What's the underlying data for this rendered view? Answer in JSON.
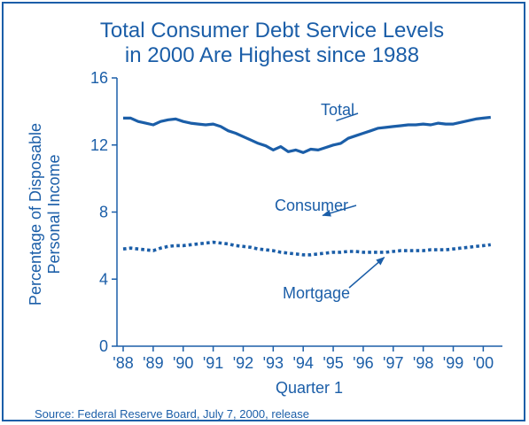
{
  "chart_data": {
    "type": "line",
    "title_lines": [
      "Total Consumer Debt Service Levels",
      "in 2000 Are Highest since 1988"
    ],
    "ylabel_lines": [
      "Percentage of Disposable",
      "Personal Income"
    ],
    "xlabel": "Quarter 1",
    "ylim": [
      0,
      16
    ],
    "yticks": [
      0,
      4,
      8,
      12,
      16
    ],
    "xlim": [
      1988,
      2000.55
    ],
    "x_categories": [
      "'88",
      "'89",
      "'90",
      "'91",
      "'92",
      "'93",
      "'94",
      "'95",
      "'96",
      "'97",
      "'98",
      "'99",
      "'00"
    ],
    "x_category_positions": [
      1988,
      1989,
      1990,
      1991,
      1992,
      1993,
      1994,
      1995,
      1996,
      1997,
      1998,
      1999,
      2000
    ],
    "grid": false,
    "series": [
      {
        "name": "Total",
        "style": "solid",
        "color": "#1b5ea8",
        "points": [
          [
            1988.0,
            13.6
          ],
          [
            1988.25,
            13.6
          ],
          [
            1988.5,
            13.4
          ],
          [
            1988.75,
            13.3
          ],
          [
            1989.0,
            13.2
          ],
          [
            1989.25,
            13.4
          ],
          [
            1989.5,
            13.5
          ],
          [
            1989.75,
            13.55
          ],
          [
            1990.0,
            13.4
          ],
          [
            1990.25,
            13.3
          ],
          [
            1990.5,
            13.25
          ],
          [
            1990.75,
            13.2
          ],
          [
            1991.0,
            13.25
          ],
          [
            1991.25,
            13.1
          ],
          [
            1991.5,
            12.85
          ],
          [
            1991.75,
            12.7
          ],
          [
            1992.0,
            12.5
          ],
          [
            1992.25,
            12.3
          ],
          [
            1992.5,
            12.1
          ],
          [
            1992.75,
            11.95
          ],
          [
            1993.0,
            11.7
          ],
          [
            1993.25,
            11.9
          ],
          [
            1993.5,
            11.6
          ],
          [
            1993.75,
            11.7
          ],
          [
            1994.0,
            11.55
          ],
          [
            1994.25,
            11.75
          ],
          [
            1994.5,
            11.7
          ],
          [
            1994.75,
            11.85
          ],
          [
            1995.0,
            12.0
          ],
          [
            1995.25,
            12.1
          ],
          [
            1995.5,
            12.4
          ],
          [
            1995.75,
            12.55
          ],
          [
            1996.0,
            12.7
          ],
          [
            1996.25,
            12.85
          ],
          [
            1996.5,
            13.0
          ],
          [
            1996.75,
            13.05
          ],
          [
            1997.0,
            13.1
          ],
          [
            1997.25,
            13.15
          ],
          [
            1997.5,
            13.2
          ],
          [
            1997.75,
            13.2
          ],
          [
            1998.0,
            13.25
          ],
          [
            1998.25,
            13.2
          ],
          [
            1998.5,
            13.3
          ],
          [
            1998.75,
            13.25
          ],
          [
            1999.0,
            13.25
          ],
          [
            1999.25,
            13.35
          ],
          [
            1999.5,
            13.45
          ],
          [
            1999.75,
            13.55
          ],
          [
            2000.0,
            13.6
          ],
          [
            2000.25,
            13.65
          ]
        ]
      },
      {
        "name": "Consumer",
        "style": "dotted",
        "color": "#1b5ea8",
        "points": [
          [
            1988.0,
            5.8
          ],
          [
            1988.25,
            5.85
          ],
          [
            1988.5,
            5.8
          ],
          [
            1988.75,
            5.75
          ],
          [
            1989.0,
            5.7
          ],
          [
            1989.25,
            5.85
          ],
          [
            1989.5,
            5.95
          ],
          [
            1989.75,
            6.0
          ],
          [
            1990.0,
            6.0
          ],
          [
            1990.25,
            6.05
          ],
          [
            1990.5,
            6.1
          ],
          [
            1990.75,
            6.15
          ],
          [
            1991.0,
            6.2
          ],
          [
            1991.25,
            6.15
          ],
          [
            1991.5,
            6.1
          ],
          [
            1991.75,
            6.0
          ],
          [
            1992.0,
            5.95
          ],
          [
            1992.25,
            5.9
          ],
          [
            1992.5,
            5.8
          ],
          [
            1992.75,
            5.75
          ],
          [
            1993.0,
            5.7
          ],
          [
            1993.25,
            5.6
          ],
          [
            1993.5,
            5.55
          ],
          [
            1993.75,
            5.5
          ],
          [
            1994.0,
            5.45
          ],
          [
            1994.25,
            5.45
          ],
          [
            1994.5,
            5.5
          ],
          [
            1994.75,
            5.55
          ],
          [
            1995.0,
            5.6
          ],
          [
            1995.25,
            5.6
          ],
          [
            1995.5,
            5.65
          ],
          [
            1995.75,
            5.65
          ],
          [
            1996.0,
            5.6
          ],
          [
            1996.25,
            5.6
          ],
          [
            1996.5,
            5.6
          ],
          [
            1996.75,
            5.6
          ],
          [
            1997.0,
            5.65
          ],
          [
            1997.25,
            5.7
          ],
          [
            1997.5,
            5.7
          ],
          [
            1997.75,
            5.7
          ],
          [
            1998.0,
            5.7
          ],
          [
            1998.25,
            5.75
          ],
          [
            1998.5,
            5.75
          ],
          [
            1998.75,
            5.75
          ],
          [
            1999.0,
            5.8
          ],
          [
            1999.25,
            5.85
          ],
          [
            1999.5,
            5.9
          ],
          [
            1999.75,
            5.95
          ],
          [
            2000.0,
            6.0
          ],
          [
            2000.25,
            6.05
          ]
        ]
      }
    ],
    "annotations": [
      {
        "text": "Total",
        "points_to": "Total",
        "target": [
          1995.1,
          13.45
        ]
      },
      {
        "text": "Consumer",
        "points_to": "Mortgage",
        "target": [
          1994.65,
          7.8
        ]
      },
      {
        "text": "Mortgage",
        "points_to": "Consumer",
        "target": [
          1996.7,
          5.3
        ]
      }
    ]
  },
  "source": "Source: Federal Reserve Board, July 7, 2000, release"
}
